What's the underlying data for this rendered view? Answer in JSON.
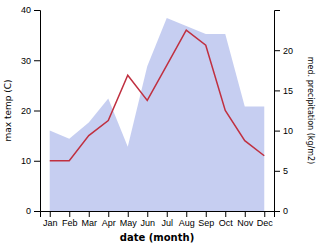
{
  "chart_data": {
    "type": "line",
    "categories": [
      "Jan",
      "Feb",
      "Mar",
      "Apr",
      "May",
      "Jun",
      "Jul",
      "Aug",
      "Sep",
      "Oct",
      "Nov",
      "Dec"
    ],
    "x_label": "date (month)",
    "y_label": "max temp (C)",
    "y2_label": "med. precipitation (kg/m2)",
    "ylim": [
      0,
      40
    ],
    "yticks": [
      0,
      10,
      20,
      30,
      40
    ],
    "y2lim": [
      0,
      25
    ],
    "y2ticks": [
      0,
      5,
      10,
      15,
      20
    ],
    "series": [
      {
        "type": "area",
        "axis": "y2",
        "color": "#bcc5ee",
        "values": [
          10,
          9,
          11,
          14,
          8,
          18,
          24,
          23,
          22,
          22,
          13,
          13
        ]
      },
      {
        "type": "line",
        "color": "#c03040",
        "values": [
          10,
          10,
          15,
          18,
          27,
          22,
          29,
          36,
          33,
          20,
          14,
          11
        ]
      }
    ]
  }
}
